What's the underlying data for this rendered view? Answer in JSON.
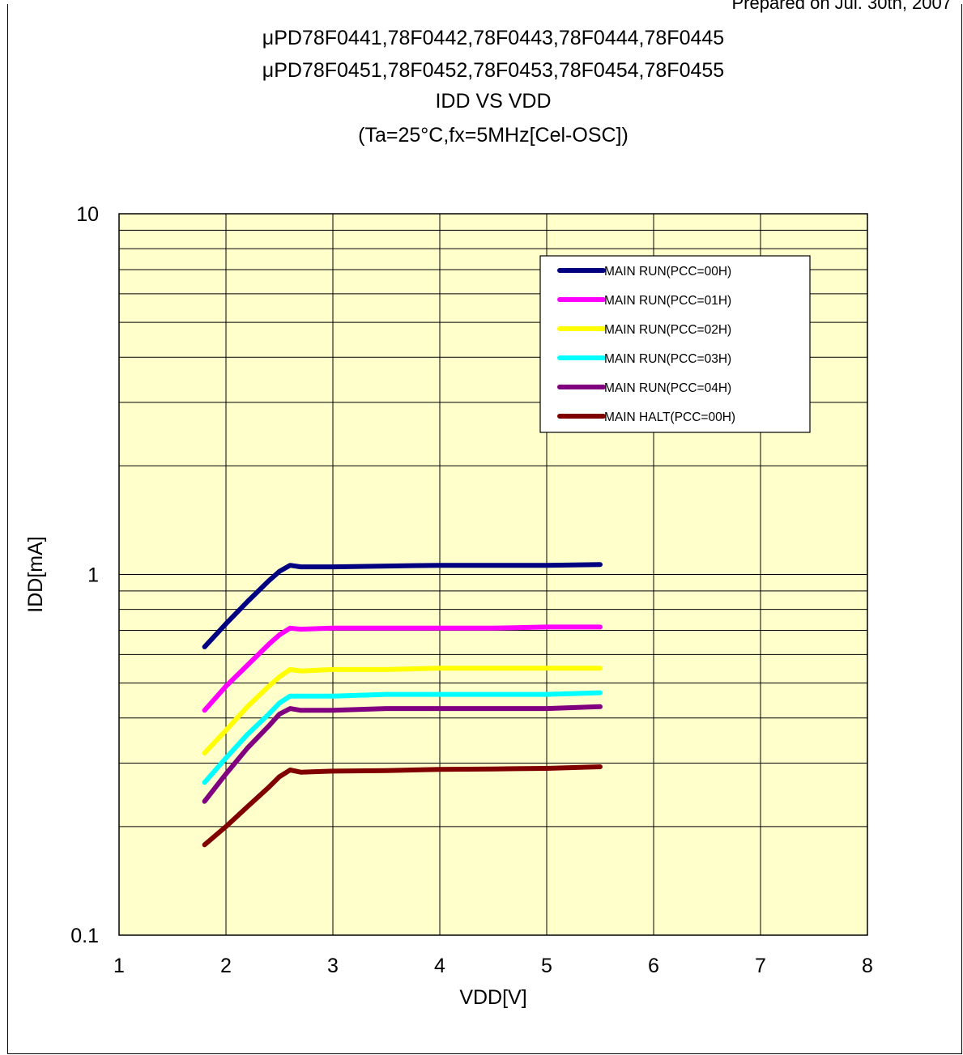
{
  "header": {
    "prepared_note": "Prepared on Jul. 30th, 2007"
  },
  "chart_data": {
    "type": "line",
    "title_lines": [
      "μPD78F0441,78F0442,78F0443,78F0444,78F0445",
      "μPD78F0451,78F0452,78F0453,78F0454,78F0455",
      "IDD VS VDD",
      "(Ta=25°C,fx=5MHz[Cel-OSC])"
    ],
    "xlabel": "VDD[V]",
    "ylabel": "IDD[mA]",
    "xlim": [
      1,
      8
    ],
    "ylim": [
      0.1,
      10
    ],
    "yscale": "log",
    "x_ticks": [
      "1",
      "2",
      "3",
      "4",
      "5",
      "6",
      "7",
      "8"
    ],
    "y_ticks": [
      {
        "value": 10,
        "label": "10"
      },
      {
        "value": 1,
        "label": "1"
      },
      {
        "value": 0.1,
        "label": "0.1"
      }
    ],
    "grid": true,
    "plot_background": "#ffffcc",
    "legend_position": "top-right",
    "series": [
      {
        "name": "MAIN RUN(PCC=00H)",
        "color": "#000080",
        "x": [
          1.8,
          2.0,
          2.2,
          2.4,
          2.5,
          2.6,
          2.7,
          3.0,
          3.5,
          4.0,
          4.5,
          5.0,
          5.5
        ],
        "y": [
          0.63,
          0.73,
          0.84,
          0.96,
          1.02,
          1.06,
          1.05,
          1.05,
          1.055,
          1.06,
          1.06,
          1.06,
          1.065
        ]
      },
      {
        "name": "MAIN RUN(PCC=01H)",
        "color": "#ff00ff",
        "x": [
          1.8,
          2.0,
          2.2,
          2.4,
          2.5,
          2.6,
          2.7,
          3.0,
          3.5,
          4.0,
          4.5,
          5.0,
          5.5
        ],
        "y": [
          0.42,
          0.49,
          0.56,
          0.64,
          0.68,
          0.71,
          0.705,
          0.71,
          0.71,
          0.71,
          0.71,
          0.715,
          0.715
        ]
      },
      {
        "name": "MAIN RUN(PCC=02H)",
        "color": "#ffff00",
        "x": [
          1.8,
          2.0,
          2.2,
          2.4,
          2.5,
          2.6,
          2.7,
          3.0,
          3.5,
          4.0,
          4.5,
          5.0,
          5.5
        ],
        "y": [
          0.32,
          0.37,
          0.43,
          0.49,
          0.52,
          0.545,
          0.54,
          0.545,
          0.545,
          0.55,
          0.55,
          0.55,
          0.55
        ]
      },
      {
        "name": "MAIN RUN(PCC=03H)",
        "color": "#00ffff",
        "x": [
          1.8,
          2.0,
          2.2,
          2.4,
          2.5,
          2.6,
          2.7,
          3.0,
          3.5,
          4.0,
          4.5,
          5.0,
          5.5
        ],
        "y": [
          0.265,
          0.31,
          0.36,
          0.41,
          0.44,
          0.46,
          0.46,
          0.46,
          0.465,
          0.465,
          0.465,
          0.465,
          0.47
        ]
      },
      {
        "name": "MAIN RUN(PCC=04H)",
        "color": "#800080",
        "x": [
          1.8,
          2.0,
          2.2,
          2.4,
          2.5,
          2.6,
          2.7,
          3.0,
          3.5,
          4.0,
          4.5,
          5.0,
          5.5
        ],
        "y": [
          0.235,
          0.28,
          0.33,
          0.38,
          0.41,
          0.425,
          0.42,
          0.42,
          0.425,
          0.425,
          0.425,
          0.425,
          0.43
        ]
      },
      {
        "name": "MAIN HALT(PCC=00H)",
        "color": "#800000",
        "x": [
          1.8,
          2.0,
          2.2,
          2.4,
          2.5,
          2.6,
          2.7,
          3.0,
          3.5,
          4.0,
          4.5,
          5.0,
          5.5
        ],
        "y": [
          0.178,
          0.2,
          0.227,
          0.257,
          0.275,
          0.287,
          0.283,
          0.285,
          0.286,
          0.288,
          0.289,
          0.29,
          0.293
        ]
      }
    ]
  }
}
